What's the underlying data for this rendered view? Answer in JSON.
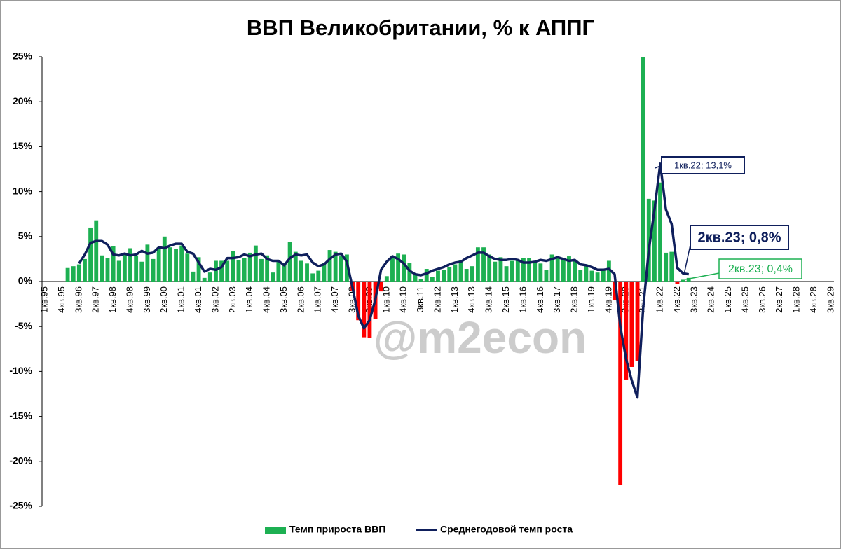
{
  "chart_data": {
    "type": "bar-line",
    "title": "ВВП Великобритании, % к АППГ",
    "categories": [
      "1кв.95",
      null,
      null,
      "4кв.95",
      null,
      null,
      "3кв.96",
      null,
      null,
      "2кв.97",
      null,
      null,
      "1кв.98",
      null,
      null,
      "4кв.98",
      null,
      null,
      "3кв.99",
      null,
      null,
      "2кв.00",
      null,
      null,
      "1кв.01",
      null,
      null,
      "4кв.01",
      null,
      null,
      "3кв.02",
      null,
      null,
      "2кв.03",
      null,
      null,
      "1кв.04",
      null,
      null,
      "4кв.04",
      null,
      null,
      "3кв.05",
      null,
      null,
      "2кв.06",
      null,
      null,
      "1кв.07",
      null,
      null,
      "4кв.07",
      null,
      null,
      "3кв.08",
      null,
      null,
      "2кв.09",
      null,
      null,
      "1кв.10",
      null,
      null,
      "4кв.10",
      null,
      null,
      "3кв.11",
      null,
      null,
      "2кв.12",
      null,
      null,
      "1кв.13",
      null,
      null,
      "4кв.13",
      null,
      null,
      "3кв.14",
      null,
      null,
      "2кв.15",
      null,
      null,
      "1кв.16",
      null,
      null,
      "4кв.16",
      null,
      null,
      "3кв.17",
      null,
      null,
      "2кв.18",
      null,
      null,
      "1кв.19",
      null,
      null,
      "4кв.19",
      null,
      null,
      "3кв.20",
      null,
      null,
      "2кв.21",
      null,
      null,
      "1кв.22",
      null,
      null,
      "4кв.22",
      null,
      null,
      "3кв.23",
      null,
      null,
      "2кв.24",
      null,
      null,
      "1кв.25",
      null,
      null,
      "4кв.25",
      null,
      null,
      "3кв.26",
      null,
      null,
      "2кв.27",
      null,
      null,
      "1кв.28",
      null,
      null,
      "4кв.28",
      null,
      null,
      "3кв.29"
    ],
    "series": [
      {
        "name": "Темп прироста ВВП",
        "type": "bar",
        "color": "#1db052",
        "negative_color": "#ff0000",
        "values": [
          null,
          null,
          null,
          null,
          1.5,
          1.7,
          1.9,
          2.5,
          6.0,
          6.8,
          2.9,
          2.6,
          3.9,
          2.3,
          3.0,
          3.7,
          2.9,
          2.2,
          4.1,
          2.5,
          3.8,
          5.0,
          3.8,
          3.6,
          4.0,
          3.1,
          1.1,
          2.7,
          0.4,
          1.0,
          2.3,
          2.3,
          2.3,
          3.4,
          2.4,
          2.6,
          3.2,
          4.0,
          2.5,
          2.9,
          1.0,
          2.2,
          2.1,
          4.4,
          3.3,
          2.3,
          2.0,
          0.9,
          1.2,
          2.1,
          3.5,
          3.3,
          2.8,
          3.0,
          -1.0,
          -4.3,
          -6.2,
          -6.3,
          -4.2,
          -1.1,
          0.6,
          2.8,
          3.1,
          3.0,
          2.1,
          0.9,
          0.3,
          1.4,
          0.5,
          1.2,
          1.3,
          1.6,
          1.9,
          2.4,
          1.4,
          1.7,
          3.8,
          3.8,
          3.0,
          2.2,
          2.7,
          1.7,
          2.3,
          2.3,
          2.6,
          2.6,
          2.2,
          2.0,
          1.3,
          3.0,
          2.7,
          2.4,
          2.8,
          2.4,
          1.3,
          1.9,
          1.2,
          1.0,
          1.4,
          2.3,
          -2.1,
          -22.6,
          -10.9,
          -9.5,
          -8.8,
          25.0,
          9.2,
          9.0,
          11.0,
          3.2,
          3.3,
          -0.3,
          0.2,
          0.4,
          null,
          null,
          null,
          null,
          null,
          null,
          null,
          null,
          null,
          null,
          null,
          null,
          null,
          null,
          null,
          null,
          null,
          null,
          null,
          null,
          null,
          null,
          null,
          null,
          null
        ]
      },
      {
        "name": "Среднегодовой темп роста",
        "type": "line",
        "color": "#0f1f5c",
        "values": [
          null,
          null,
          null,
          null,
          null,
          null,
          2.0,
          3.0,
          4.3,
          4.5,
          4.5,
          4.1,
          3.0,
          2.9,
          3.1,
          2.9,
          3.0,
          3.4,
          3.1,
          3.2,
          3.8,
          3.7,
          4.0,
          4.2,
          4.2,
          3.3,
          3.1,
          2.1,
          1.1,
          1.4,
          1.3,
          1.6,
          2.6,
          2.6,
          2.7,
          3.0,
          2.8,
          3.0,
          3.1,
          2.5,
          2.3,
          2.3,
          1.8,
          2.6,
          3.0,
          2.9,
          3.0,
          2.1,
          1.7,
          1.9,
          2.5,
          3.0,
          3.1,
          2.2,
          -0.7,
          -3.8,
          -5.2,
          -4.3,
          -2.0,
          1.3,
          2.2,
          2.8,
          2.5,
          2.0,
          1.2,
          0.8,
          0.7,
          0.9,
          1.2,
          1.4,
          1.6,
          1.9,
          2.1,
          2.2,
          2.6,
          2.9,
          3.2,
          3.2,
          2.8,
          2.5,
          2.4,
          2.4,
          2.5,
          2.4,
          2.1,
          2.1,
          2.2,
          2.4,
          2.3,
          2.5,
          2.7,
          2.5,
          2.3,
          2.4,
          1.9,
          1.8,
          1.6,
          1.3,
          1.3,
          1.4,
          0.8,
          -5.0,
          -8.6,
          -11.0,
          -12.9,
          -3.0,
          3.5,
          8.0,
          13.1,
          8.0,
          6.4,
          1.5,
          0.9,
          0.8,
          null,
          null,
          null,
          null,
          null,
          null,
          null,
          null,
          null,
          null,
          null,
          null,
          null,
          null,
          null,
          null,
          null,
          null,
          null,
          null,
          null,
          null,
          null,
          null,
          null
        ]
      }
    ],
    "ylim": [
      -25,
      25
    ],
    "yticks": [
      {
        "value": -25,
        "label": "-25%"
      },
      {
        "value": -20,
        "label": "-20%"
      },
      {
        "value": -15,
        "label": "-15%"
      },
      {
        "value": -10,
        "label": "-10%"
      },
      {
        "value": -5,
        "label": "-5%"
      },
      {
        "value": 0,
        "label": "0%"
      },
      {
        "value": 5,
        "label": "5%"
      },
      {
        "value": 10,
        "label": "10%"
      },
      {
        "value": 15,
        "label": "15%"
      },
      {
        "value": 20,
        "label": "20%"
      },
      {
        "value": 25,
        "label": "25%"
      }
    ],
    "annotations": [
      "1кв.22; 13,1%",
      "2кв.23; 0,8%",
      "2кв.23; 0,4%"
    ],
    "watermark": "@m2econ",
    "legend": "bottom"
  }
}
